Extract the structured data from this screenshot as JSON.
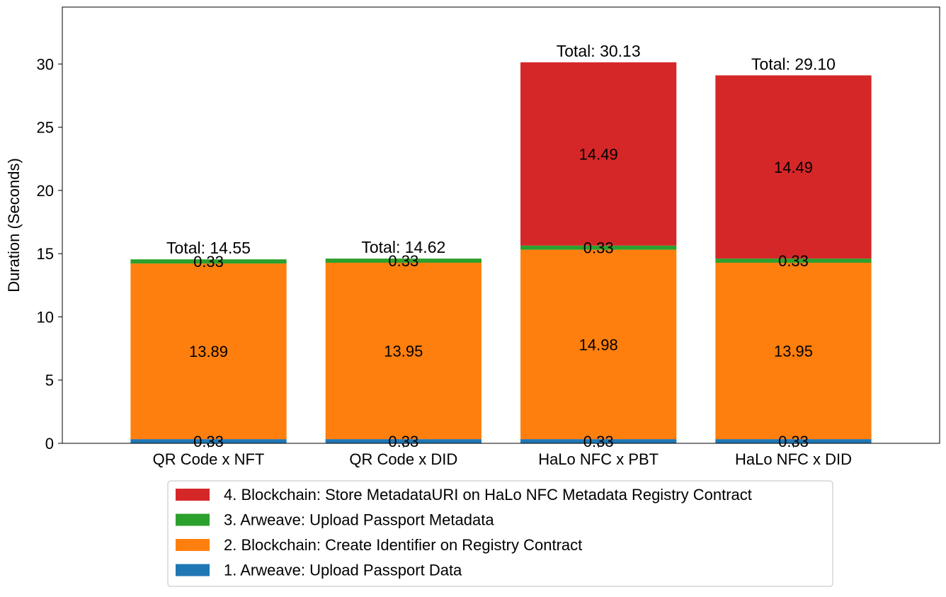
{
  "chart_data": {
    "type": "bar",
    "stacked": true,
    "title": "",
    "xlabel": "",
    "ylabel": "Duration (Seconds)",
    "ylim": [
      0,
      34.5
    ],
    "yticks": [
      0,
      5,
      10,
      15,
      20,
      25,
      30
    ],
    "grid": false,
    "legend_placement": "bottom-center, below axes",
    "categories": [
      "QR Code x NFT",
      "QR Code x DID",
      "HaLo NFC x PBT",
      "HaLo NFC x DID"
    ],
    "series": [
      {
        "name": "1. Arweave: Upload Passport Data",
        "color": "#1f77b4",
        "values": [
          0.33,
          0.33,
          0.33,
          0.33
        ],
        "labels": [
          "0.33",
          "0.33",
          "0.33",
          "0.33"
        ]
      },
      {
        "name": "2. Blockchain: Create Identifier on Registry Contract",
        "color": "#ff7f0e",
        "values": [
          13.89,
          13.95,
          14.98,
          13.95
        ],
        "labels": [
          "13.89",
          "13.95",
          "14.98",
          "13.95"
        ]
      },
      {
        "name": "3. Arweave: Upload Passport Metadata",
        "color": "#2ca02c",
        "values": [
          0.33,
          0.33,
          0.33,
          0.33
        ],
        "labels": [
          "0.33",
          "0.33",
          "0.33",
          "0.33"
        ]
      },
      {
        "name": "4. Blockchain: Store MetadataURI on HaLo NFC Metadata Registry Contract",
        "color": "#d62728",
        "values": [
          0,
          0,
          14.49,
          14.49
        ],
        "labels": [
          "",
          "",
          "14.49",
          "14.49"
        ]
      }
    ],
    "totals": [
      14.55,
      14.62,
      30.13,
      29.1
    ],
    "total_labels": [
      "Total: 14.55",
      "Total: 14.62",
      "Total: 30.13",
      "Total: 29.10"
    ],
    "legend_order": [
      3,
      2,
      1,
      0
    ]
  }
}
